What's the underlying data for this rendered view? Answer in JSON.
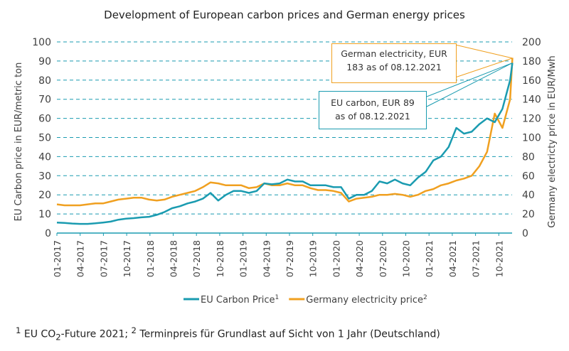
{
  "chart_data": {
    "type": "line",
    "title": "Development of European carbon prices and German energy prices",
    "ylabel": "EU Carbon price in EUR/metric ton",
    "y2label": "Germany electricty price in EUR/Mwh",
    "ylim": [
      0,
      100
    ],
    "y2lim": [
      0,
      200
    ],
    "yticks": [
      "0",
      "10",
      "20",
      "30",
      "40",
      "50",
      "60",
      "70",
      "80",
      "90",
      "100"
    ],
    "y2ticks": [
      "0",
      "20",
      "40",
      "60",
      "80",
      "100",
      "120",
      "140",
      "160",
      "180",
      "200"
    ],
    "xticks": [
      "01-2017",
      "04-2017",
      "07-2017",
      "10-2017",
      "01-2018",
      "04-2018",
      "07-2018",
      "10-2018",
      "01-2019",
      "04-2019",
      "07-2019",
      "10-2019",
      "01-2020",
      "04-2020",
      "07-2020",
      "10-2020",
      "01-2021",
      "04-2021",
      "07-2021",
      "10-2021"
    ],
    "grid": true,
    "legend_position": "bottom",
    "x_start": "2017-01",
    "x_interval": "monthly",
    "series": [
      {
        "name": "EU Carbon Price",
        "sup": "1",
        "axis": "left",
        "color": "#1a9bb0",
        "values": [
          5.5,
          5.3,
          5,
          4.8,
          4.8,
          5.1,
          5.5,
          6,
          7,
          7.5,
          7.8,
          8.2,
          8.5,
          9.5,
          11,
          13,
          14,
          15.5,
          16.5,
          18,
          21,
          17,
          20,
          22,
          22,
          21,
          22,
          26,
          25.5,
          26,
          28,
          27,
          27,
          25,
          25,
          25,
          24,
          24,
          18,
          20,
          20,
          22,
          27,
          26,
          28,
          26,
          25,
          29,
          32,
          38,
          40,
          45,
          55,
          52,
          53,
          57,
          60,
          58,
          65,
          80,
          89
        ]
      },
      {
        "name": "Germany electricity price",
        "sup": "2",
        "axis": "right",
        "color": "#f0a020",
        "values": [
          30,
          29,
          29,
          29,
          30,
          31,
          31,
          33,
          35,
          36,
          37,
          37,
          35,
          34,
          35,
          38,
          40,
          42,
          44,
          48,
          53,
          52,
          50,
          50,
          50,
          47,
          48,
          52,
          50,
          50,
          52,
          50,
          50,
          47,
          45,
          45,
          44,
          42,
          33,
          36,
          37,
          38,
          40,
          40,
          41,
          40,
          38,
          40,
          44,
          46,
          50,
          52,
          55,
          57,
          60,
          70,
          85,
          125,
          110,
          140,
          183
        ]
      }
    ],
    "annotations": [
      {
        "text1": "German electricity, EUR",
        "text2": "183  as of 08.12.2021",
        "color": "#f0a020"
      },
      {
        "text1": "EU carbon, EUR 89",
        "text2": "as of 08.12.2021",
        "color": "#1a9bb0"
      }
    ]
  },
  "footnote": {
    "n1": "1",
    "t1": " EU CO",
    "sub": "2",
    "t2": "-Future 2021; ",
    "n2": "2",
    "t3": " Terminpreis für Grundlast auf Sicht von 1 Jahr (Deutschland)"
  }
}
